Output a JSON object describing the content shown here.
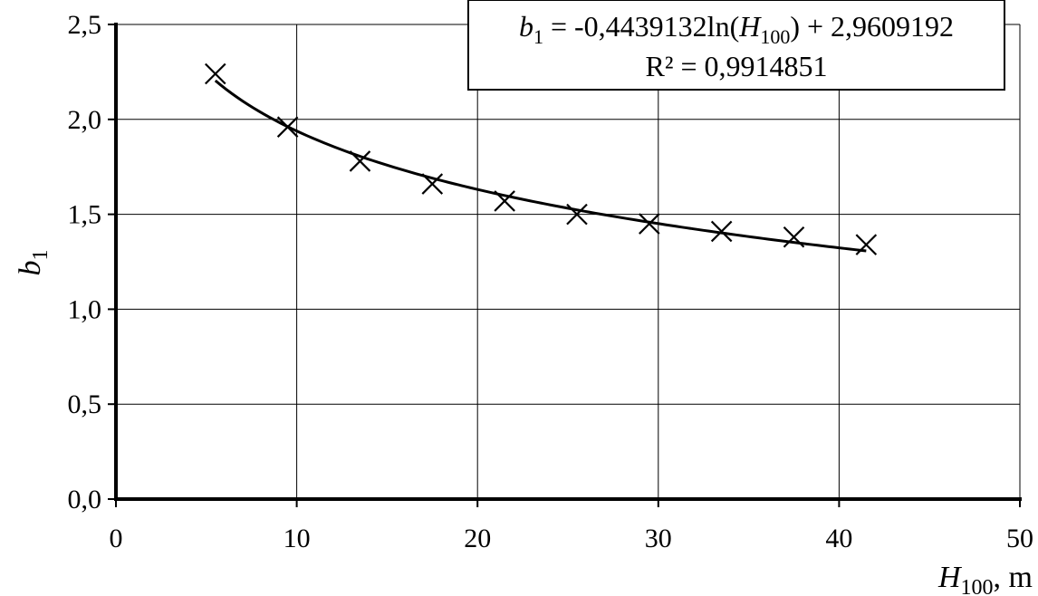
{
  "chart_data": {
    "type": "scatter",
    "x": [
      5.5,
      9.5,
      13.5,
      17.5,
      21.5,
      25.5,
      29.5,
      33.5,
      37.5,
      41.5
    ],
    "y": [
      2.24,
      1.96,
      1.78,
      1.66,
      1.57,
      1.5,
      1.45,
      1.41,
      1.38,
      1.34
    ],
    "trendline": {
      "type": "logarithmic",
      "a": -0.4439132,
      "b": 2.9609192,
      "x_range": [
        5.5,
        41.5
      ]
    },
    "xlim": [
      0,
      50
    ],
    "ylim": [
      0,
      2.5
    ],
    "x_ticks": [
      "0",
      "10",
      "20",
      "30",
      "40",
      "50"
    ],
    "y_ticks": [
      "0,0",
      "0,5",
      "1,0",
      "1,5",
      "2,0",
      "2,5"
    ],
    "xlabel": {
      "var": "H",
      "sub": "100",
      "unit": ", m"
    },
    "ylabel": {
      "var": "b",
      "sub": "1"
    },
    "equation": {
      "var": "b",
      "var_sub": "1",
      "mid": " = -0,4439132ln(",
      "h_var": "H",
      "h_sub": "100",
      "tail": ")  + 2,9609192",
      "r2": "R² = 0,9914851"
    },
    "grid": true,
    "legend_position": "top-right",
    "marker": "x",
    "colors": {
      "line": "#000000",
      "grid": "#000000",
      "background": "#ffffff"
    }
  }
}
